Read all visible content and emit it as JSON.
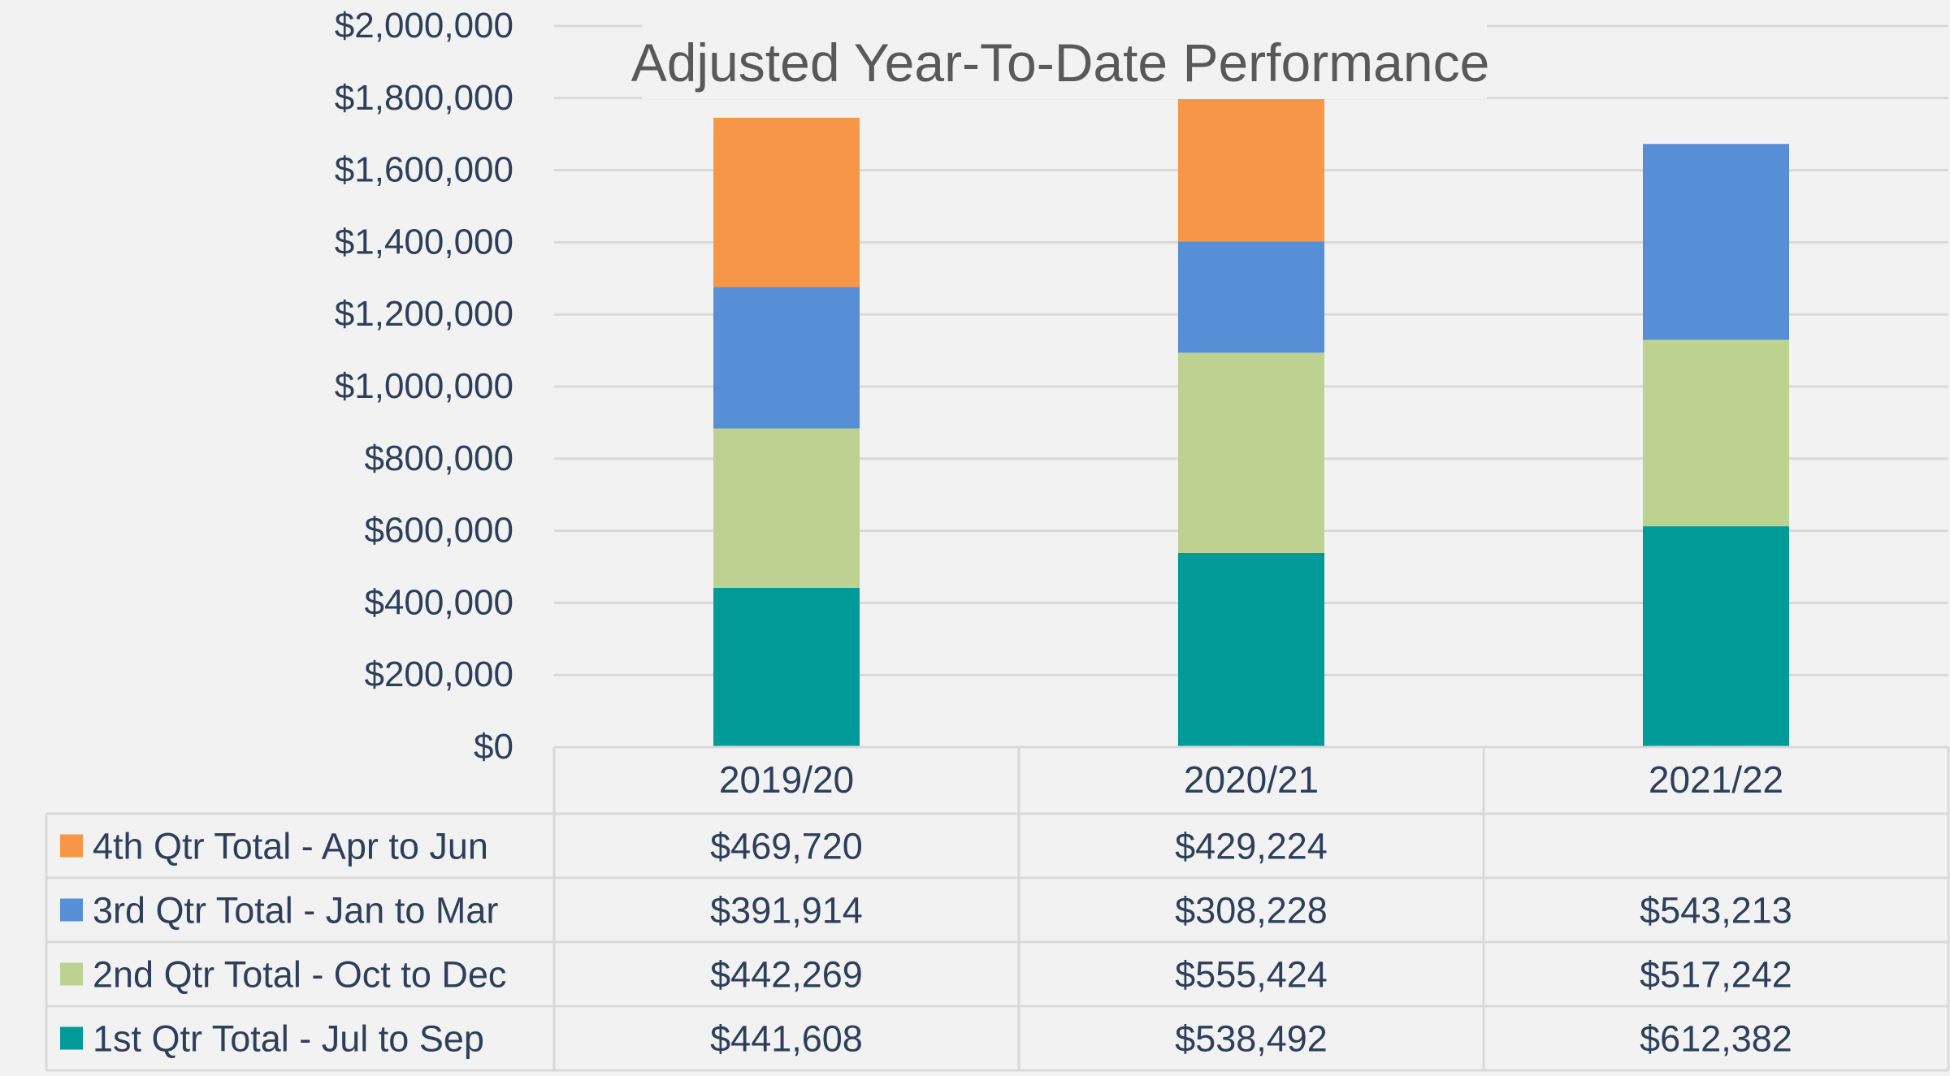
{
  "chart_data": {
    "type": "bar",
    "stacked": true,
    "title": "Adjusted Year-To-Date Performance",
    "xlabel": "",
    "ylabel": "",
    "ylim": [
      0,
      2000000
    ],
    "yticks": [
      "$0",
      "$200,000",
      "$400,000",
      "$600,000",
      "$800,000",
      "$1,000,000",
      "$1,200,000",
      "$1,400,000",
      "$1,600,000",
      "$1,800,000",
      "$2,000,000"
    ],
    "ytick_values": [
      0,
      200000,
      400000,
      600000,
      800000,
      1000000,
      1200000,
      1400000,
      1600000,
      1800000,
      2000000
    ],
    "grid": true,
    "legend_placement": "data-table-left",
    "categories": [
      "2019/20",
      "2020/21",
      "2021/22"
    ],
    "series": [
      {
        "name": "1st Qtr Total - Jul to Sep",
        "color": "#009a98",
        "values": [
          441608,
          538492,
          612382
        ],
        "labels": [
          "$441,608",
          "$538,492",
          "$612,382"
        ]
      },
      {
        "name": "2nd Qtr Total - Oct to Dec",
        "color": "#bdd291",
        "values": [
          442269,
          555424,
          517242
        ],
        "labels": [
          "$442,269",
          "$555,424",
          "$517,242"
        ]
      },
      {
        "name": "3rd Qtr Total - Jan to Mar",
        "color": "#578fd6",
        "values": [
          391914,
          308228,
          543213
        ],
        "labels": [
          "$391,914",
          "$308,228",
          "$543,213"
        ]
      },
      {
        "name": "4th Qtr Total - Apr to Jun",
        "color": "#f79646",
        "values": [
          469720,
          429224,
          null
        ],
        "labels": [
          "$469,720",
          "$429,224",
          ""
        ]
      }
    ],
    "table_row_order": [
      3,
      2,
      1,
      0
    ]
  }
}
